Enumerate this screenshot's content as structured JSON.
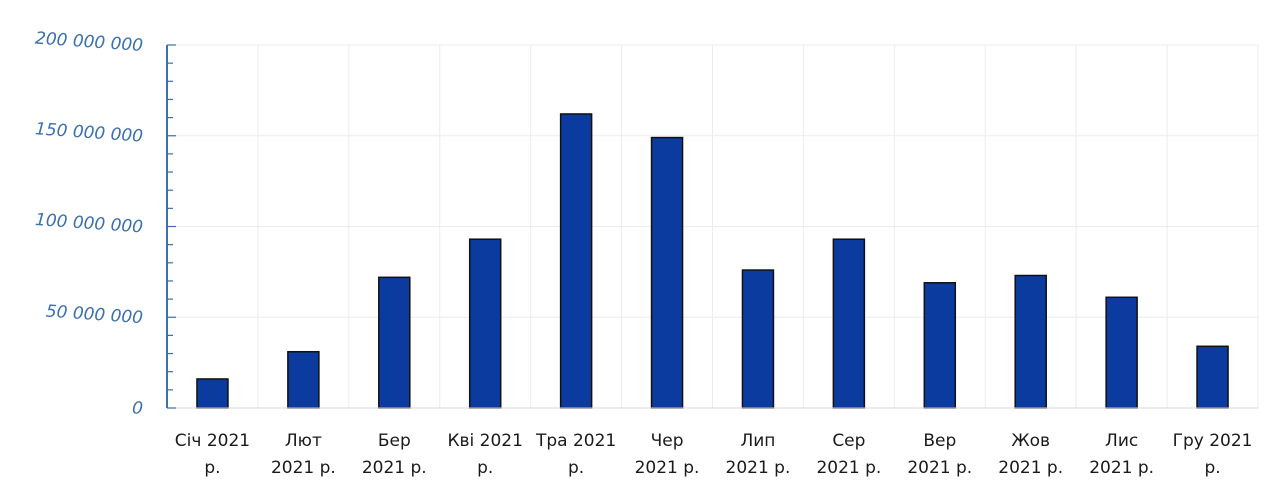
{
  "colors": {
    "bar_fill": "#0b3b9e",
    "bar_stroke": "#111111",
    "axis": "#3a6fb0",
    "grid": "#ececec"
  },
  "chart_data": {
    "type": "bar",
    "title": "",
    "xlabel": "",
    "ylabel": "",
    "ylim": [
      0,
      200000000
    ],
    "grid": true,
    "categories": [
      "Січ 2021 р.",
      "Лют 2021 р.",
      "Бер 2021 р.",
      "Кві 2021 р.",
      "Тра 2021 р.",
      "Чер 2021 р.",
      "Лип 2021 р.",
      "Сер 2021 р.",
      "Вер 2021 р.",
      "Жов 2021 р.",
      "Лис 2021 р.",
      "Гру 2021 р."
    ],
    "category_lines": [
      [
        "Січ 2021",
        "р."
      ],
      [
        "Лют",
        "2021 р."
      ],
      [
        "Бер",
        "2021 р."
      ],
      [
        "Кві 2021",
        "р."
      ],
      [
        "Тра 2021",
        "р."
      ],
      [
        "Чер",
        "2021 р."
      ],
      [
        "Лип",
        "2021 р."
      ],
      [
        "Сер",
        "2021 р."
      ],
      [
        "Вер",
        "2021 р."
      ],
      [
        "Жов",
        "2021 р."
      ],
      [
        "Лис",
        "2021 р."
      ],
      [
        "Гру 2021",
        "р."
      ]
    ],
    "values": [
      16000000,
      31000000,
      72000000,
      93000000,
      162000000,
      149000000,
      76000000,
      93000000,
      69000000,
      73000000,
      61000000,
      34000000
    ],
    "y_ticks": [
      {
        "value": 0,
        "label": "0"
      },
      {
        "value": 50000000,
        "label": "50 000 000"
      },
      {
        "value": 100000000,
        "label": "100 000 000"
      },
      {
        "value": 150000000,
        "label": "150 000 000"
      },
      {
        "value": 200000000,
        "label": "200 000 000"
      }
    ]
  }
}
